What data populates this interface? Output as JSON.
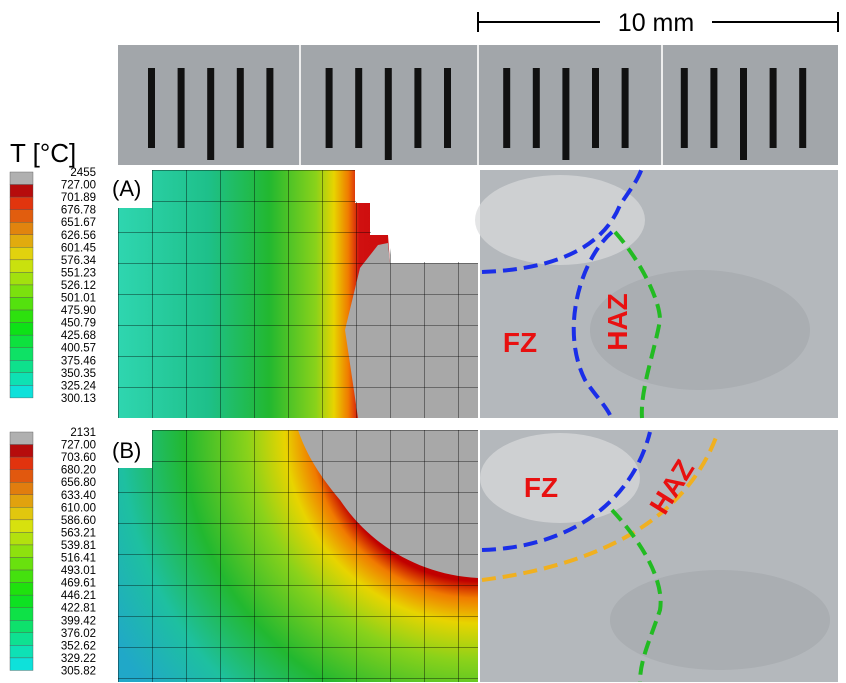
{
  "legend_title": "T [°C]",
  "scale_bar": "10 mm",
  "panels": [
    {
      "label": "(A)",
      "legend": [
        "2455",
        "727.00",
        "701.89",
        "676.78",
        "651.67",
        "626.56",
        "601.45",
        "576.34",
        "551.23",
        "526.12",
        "501.01",
        "475.90",
        "450.79",
        "425.68",
        "400.57",
        "375.46",
        "350.35",
        "325.24",
        "300.13"
      ],
      "annotations": [
        "FZ",
        "HAZ"
      ]
    },
    {
      "label": "(B)",
      "legend": [
        "2131",
        "727.00",
        "703.60",
        "680.20",
        "656.80",
        "633.40",
        "610.00",
        "586.60",
        "563.21",
        "539.81",
        "516.41",
        "493.01",
        "469.61",
        "446.21",
        "422.81",
        "399.42",
        "376.02",
        "352.62",
        "329.22",
        "305.82"
      ],
      "annotations": [
        "FZ",
        "HAZ"
      ]
    }
  ]
}
